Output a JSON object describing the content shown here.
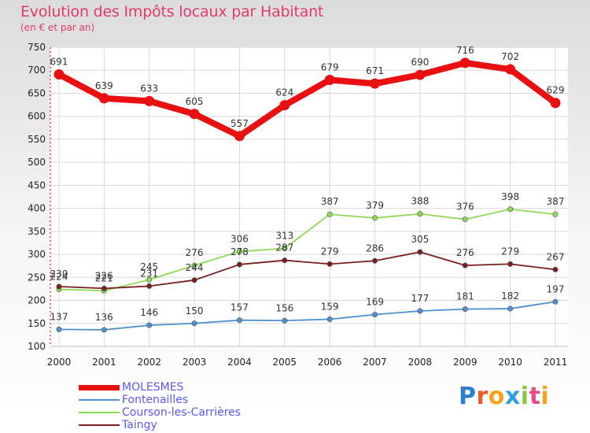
{
  "header": {
    "title": "Evolution des Impôts locaux par Habitant",
    "subtitle": "(en € et par an)"
  },
  "logo": {
    "text": "Proxiti"
  },
  "chart_data": {
    "type": "line",
    "x": [
      "2000",
      "2001",
      "2002",
      "2003",
      "2004",
      "2005",
      "2006",
      "2007",
      "2008",
      "2009",
      "2010",
      "2011"
    ],
    "ylim": [
      100,
      750
    ],
    "yticks": [
      100,
      150,
      200,
      250,
      300,
      350,
      400,
      450,
      500,
      550,
      600,
      650,
      700,
      750
    ],
    "grid": true,
    "legend_position": "bottom-left",
    "series": [
      {
        "name": "MOLESMES",
        "color": "#e81010",
        "values": [
          691,
          639,
          633,
          605,
          557,
          624,
          679,
          671,
          690,
          716,
          702,
          629
        ]
      },
      {
        "name": "Fontenailles",
        "color": "#4f8fd0",
        "values": [
          137,
          136,
          146,
          150,
          157,
          156,
          159,
          169,
          177,
          181,
          182,
          197
        ]
      },
      {
        "name": "Courson-les-Carrières",
        "color": "#8ed858",
        "values": [
          224,
          221,
          245,
          276,
          306,
          313,
          387,
          379,
          388,
          376,
          398,
          387
        ]
      },
      {
        "name": "Taingy",
        "color": "#7a1f1f",
        "values": [
          230,
          226,
          231,
          244,
          278,
          287,
          279,
          286,
          305,
          276,
          279,
          267
        ]
      }
    ]
  }
}
